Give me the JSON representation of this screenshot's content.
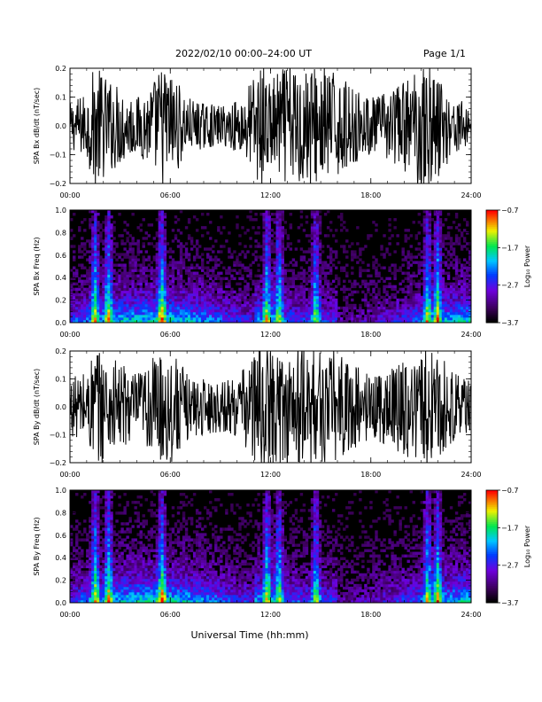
{
  "header": {
    "title": "2022/02/10  00:00–24:00 UT",
    "page": "Page 1/1"
  },
  "xlabel": "Universal Time (hh:mm)",
  "chart_data": [
    {
      "type": "line",
      "ylabel": "SPA Bx dB/dt (nT/sec)",
      "xticks": [
        "00:00",
        "06:00",
        "12:00",
        "18:00",
        "24:00"
      ],
      "yticks": [
        "0.2",
        "0.1",
        "0.0",
        "−0.1",
        "−0.2"
      ],
      "xlim": [
        0,
        24
      ],
      "ylim": [
        -0.2,
        0.2
      ],
      "x_unit": "hours UT",
      "envelope_hour": [
        0,
        1,
        1.5,
        2,
        3,
        4,
        5,
        5.5,
        6,
        7,
        8,
        9,
        10,
        11,
        11.5,
        12,
        13,
        14,
        15,
        16,
        17,
        18,
        19,
        20,
        21,
        21.5,
        22,
        23,
        24
      ],
      "envelope_amp": [
        0.08,
        0.12,
        0.22,
        0.18,
        0.14,
        0.1,
        0.16,
        0.22,
        0.2,
        0.1,
        0.08,
        0.07,
        0.09,
        0.18,
        0.22,
        0.16,
        0.22,
        0.22,
        0.22,
        0.18,
        0.13,
        0.1,
        0.12,
        0.16,
        0.22,
        0.22,
        0.18,
        0.1,
        0.07
      ]
    },
    {
      "type": "heatmap",
      "ylabel": "SPA Bx Freq (Hz)",
      "xticks": [
        "00:00",
        "06:00",
        "12:00",
        "18:00",
        "24:00"
      ],
      "yticks": [
        "1.0",
        "0.8",
        "0.6",
        "0.4",
        "0.2",
        "0.0"
      ],
      "xlim": [
        0,
        24
      ],
      "ylim": [
        0,
        1.0
      ],
      "colorbar": {
        "label": "Log₁₀ Power",
        "ticks": [
          "−0.7",
          "−1.7",
          "−2.7",
          "−3.7"
        ],
        "range": [
          -3.7,
          -0.7
        ]
      },
      "bright_hours": [
        1.5,
        2.3,
        5.5,
        11.8,
        12.5,
        14.7,
        21.4,
        22.0
      ]
    },
    {
      "type": "line",
      "ylabel": "SPA By dB/dt (nT/sec)",
      "xticks": [
        "00:00",
        "06:00",
        "12:00",
        "18:00",
        "24:00"
      ],
      "yticks": [
        "0.2",
        "0.1",
        "0.0",
        "−0.1",
        "−0.2"
      ],
      "xlim": [
        0,
        24
      ],
      "ylim": [
        -0.2,
        0.2
      ],
      "x_unit": "hours UT",
      "envelope_hour": [
        0,
        1,
        1.5,
        2,
        3,
        4,
        5,
        5.5,
        6,
        7,
        8,
        9,
        10,
        11,
        11.5,
        12,
        13,
        14,
        15,
        16,
        17,
        18,
        19,
        20,
        21,
        21.5,
        22,
        23,
        24
      ],
      "envelope_amp": [
        0.1,
        0.14,
        0.22,
        0.2,
        0.16,
        0.12,
        0.18,
        0.22,
        0.22,
        0.12,
        0.1,
        0.09,
        0.11,
        0.2,
        0.22,
        0.2,
        0.22,
        0.22,
        0.22,
        0.2,
        0.15,
        0.12,
        0.14,
        0.18,
        0.22,
        0.22,
        0.2,
        0.12,
        0.09
      ]
    },
    {
      "type": "heatmap",
      "ylabel": "SPA By Freq (Hz)",
      "xticks": [
        "00:00",
        "06:00",
        "12:00",
        "18:00",
        "24:00"
      ],
      "yticks": [
        "1.0",
        "0.8",
        "0.6",
        "0.4",
        "0.2",
        "0.0"
      ],
      "xlim": [
        0,
        24
      ],
      "ylim": [
        0,
        1.0
      ],
      "colorbar": {
        "label": "Log₁₀ Power",
        "ticks": [
          "−0.7",
          "−1.7",
          "−2.7",
          "−3.7"
        ],
        "range": [
          -3.7,
          -0.7
        ]
      },
      "bright_hours": [
        1.5,
        2.3,
        5.5,
        11.8,
        12.5,
        14.7,
        21.4,
        22.0
      ]
    }
  ]
}
